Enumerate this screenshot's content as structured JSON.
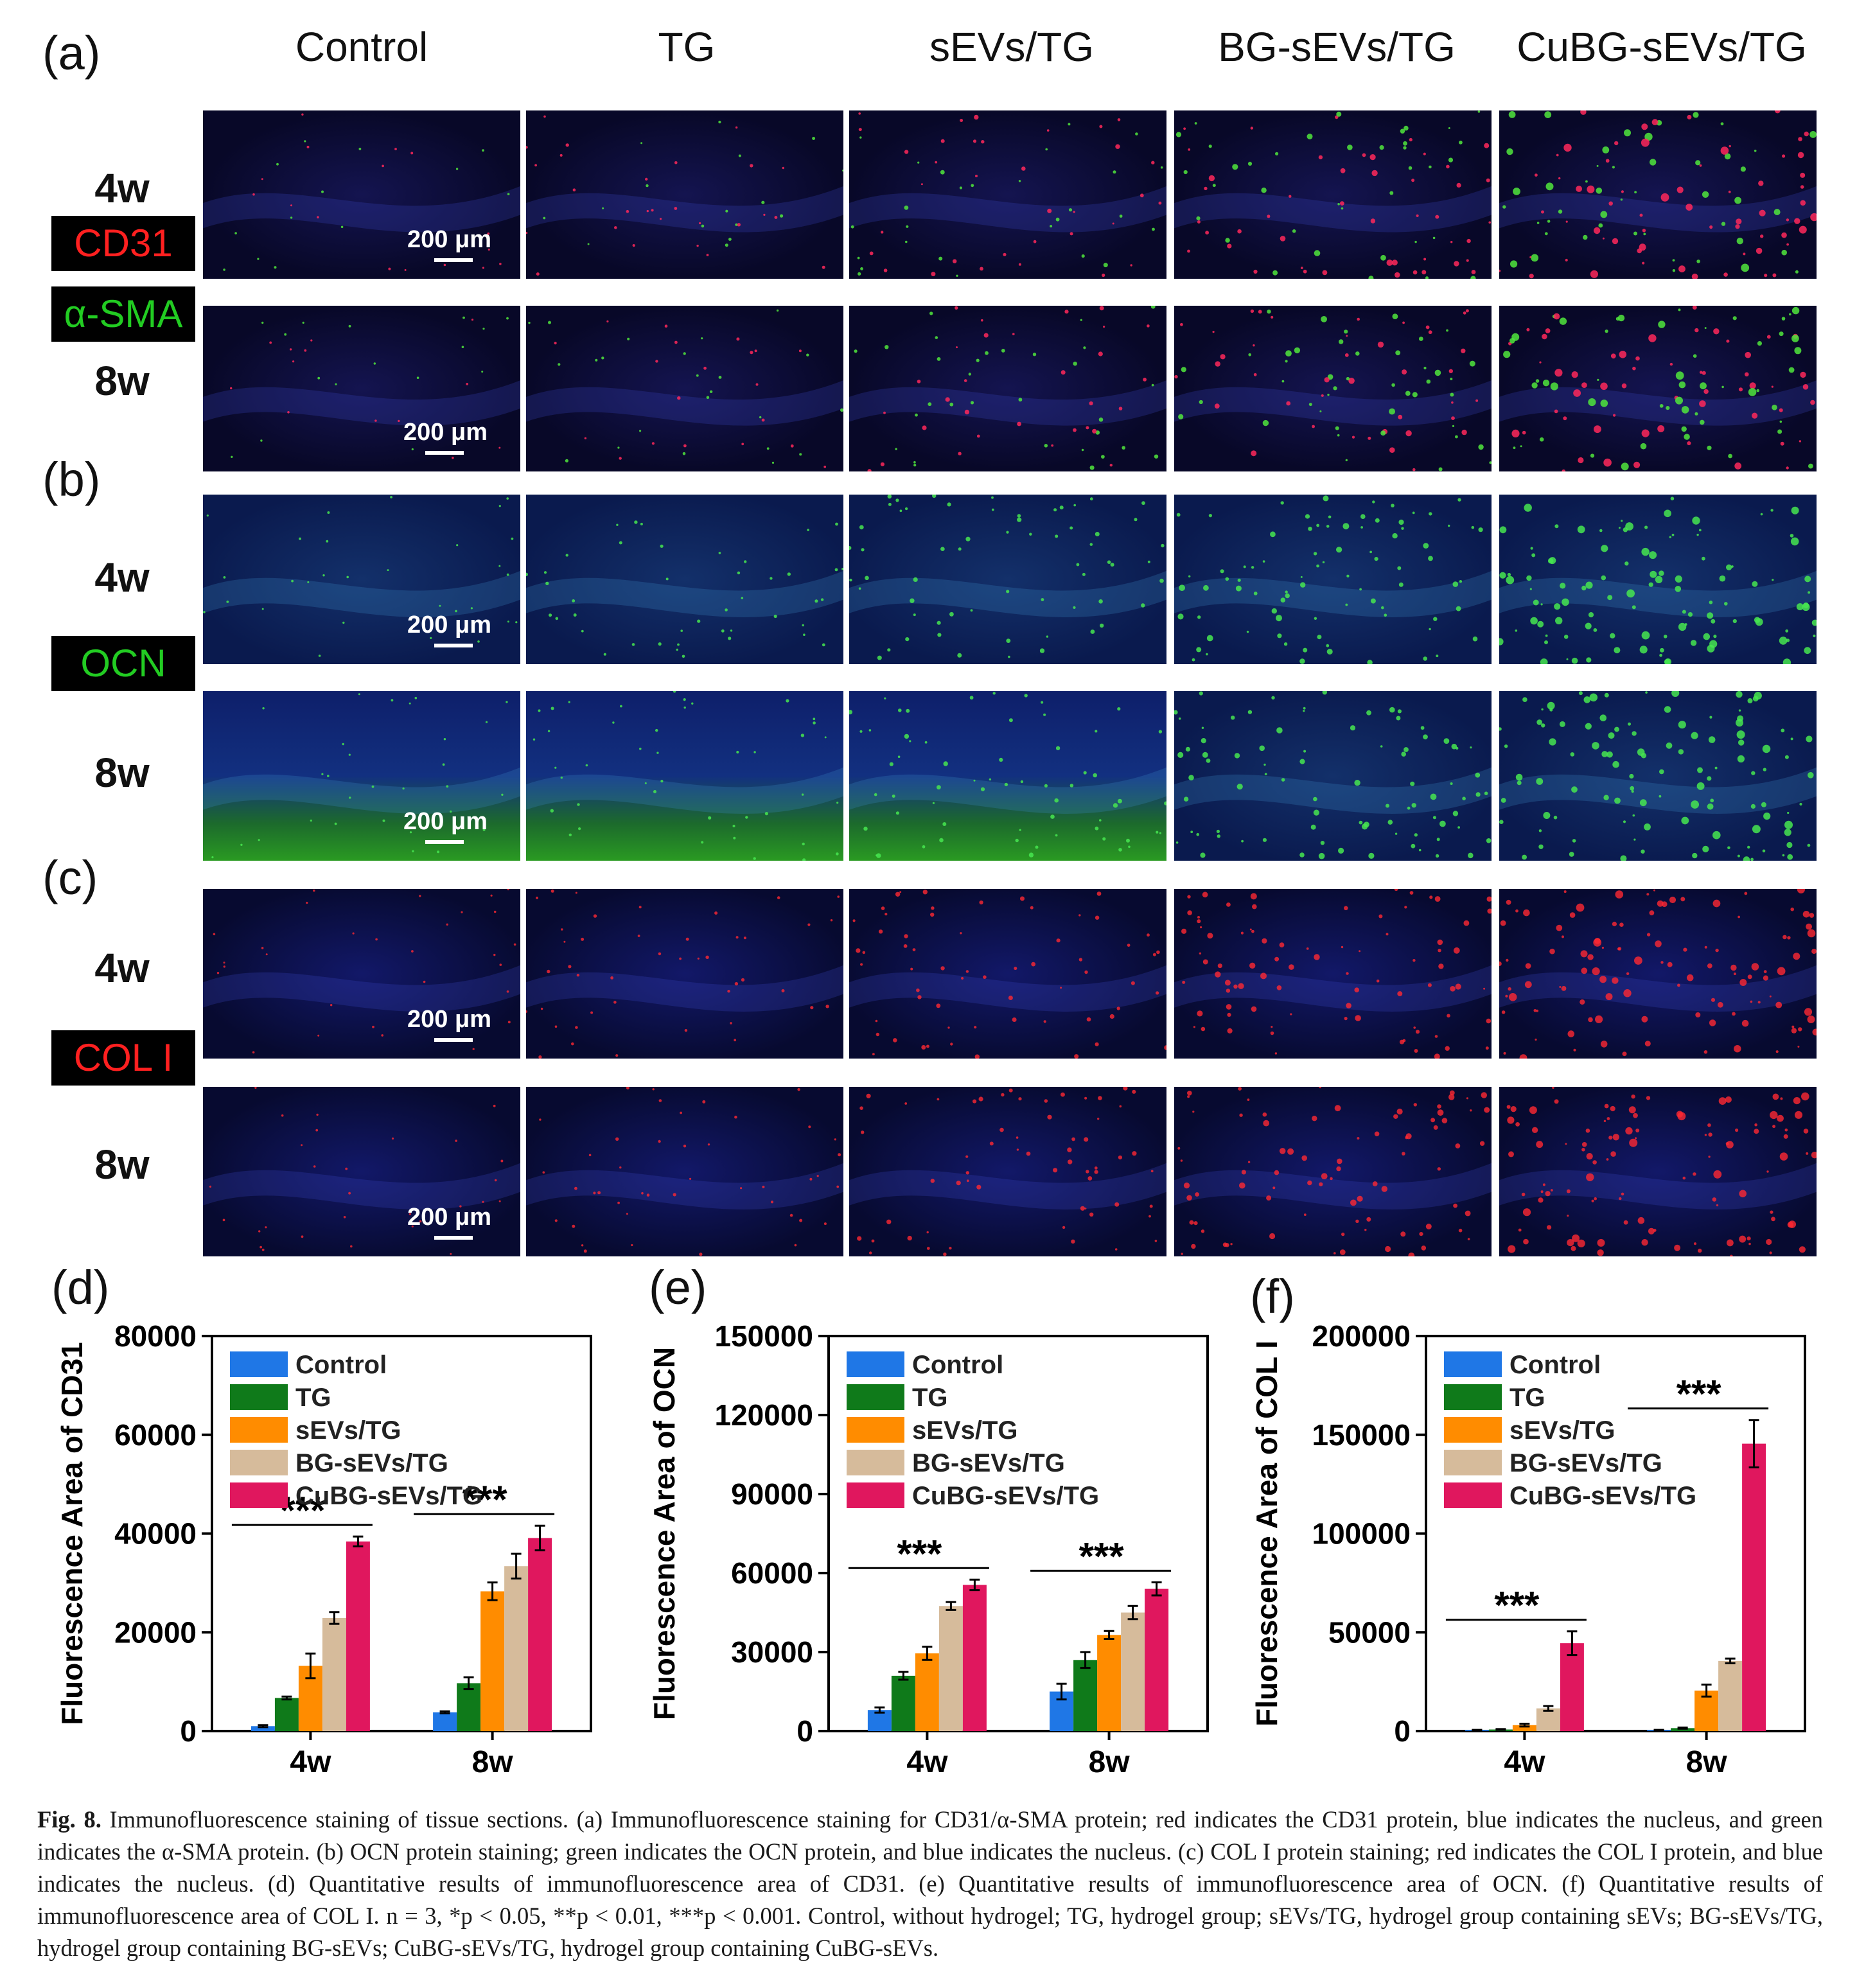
{
  "panels": {
    "a": "(a)",
    "b": "(b)",
    "c": "(c)",
    "d": "(d)",
    "e": "(e)",
    "f": "(f)"
  },
  "columns": [
    "Control",
    "TG",
    "sEVs/TG",
    "BG-sEVs/TG",
    "CuBG-sEVs/TG"
  ],
  "rows": [
    "4w",
    "8w",
    "4w",
    "8w",
    "4w",
    "8w"
  ],
  "stains": {
    "cd31": {
      "label": "CD31",
      "color": "#ff2020"
    },
    "asma": {
      "label": "α-SMA",
      "color": "#22cc22"
    },
    "ocn": {
      "label": "OCN",
      "color": "#22cc22"
    },
    "col1": {
      "label": "COL I",
      "color": "#ff2020"
    }
  },
  "scale_bar": "200 μm",
  "colors": {
    "Control": "#1f77e6",
    "TG": "#0f7a1a",
    "sEVs/TG": "#ff8c00",
    "BG-sEVs/TG": "#d6bb9b",
    "CuBG-sEVs/TG": "#e0175e"
  },
  "chart_data": [
    {
      "type": "bar",
      "ylabel": "Fluorescence Area of CD31",
      "categories": [
        "4w",
        "8w"
      ],
      "ylim": [
        0,
        80000
      ],
      "yticks": [
        0,
        20000,
        40000,
        60000,
        80000
      ],
      "legend": "top-left",
      "significance": [
        "***",
        "***"
      ],
      "series": [
        {
          "name": "Control",
          "values": [
            1000,
            3800
          ],
          "errors": [
            200,
            200
          ]
        },
        {
          "name": "TG",
          "values": [
            6700,
            9700
          ],
          "errors": [
            300,
            1200
          ]
        },
        {
          "name": "sEVs/TG",
          "values": [
            13200,
            28300
          ],
          "errors": [
            2500,
            1800
          ]
        },
        {
          "name": "BG-sEVs/TG",
          "values": [
            22900,
            33400
          ],
          "errors": [
            1200,
            2500
          ]
        },
        {
          "name": "CuBG-sEVs/TG",
          "values": [
            38400,
            39100
          ],
          "errors": [
            1000,
            2500
          ]
        }
      ]
    },
    {
      "type": "bar",
      "ylabel": "Fluorescence Area of OCN",
      "categories": [
        "4w",
        "8w"
      ],
      "ylim": [
        0,
        150000
      ],
      "yticks": [
        0,
        30000,
        60000,
        90000,
        120000,
        150000
      ],
      "legend": "top-left",
      "significance": [
        "***",
        "***"
      ],
      "series": [
        {
          "name": "Control",
          "values": [
            8000,
            15000
          ],
          "errors": [
            1000,
            3000
          ]
        },
        {
          "name": "TG",
          "values": [
            21000,
            27000
          ],
          "errors": [
            1500,
            3000
          ]
        },
        {
          "name": "sEVs/TG",
          "values": [
            29500,
            36500
          ],
          "errors": [
            2500,
            1500
          ]
        },
        {
          "name": "BG-sEVs/TG",
          "values": [
            47500,
            45000
          ],
          "errors": [
            1500,
            2500
          ]
        },
        {
          "name": "CuBG-sEVs/TG",
          "values": [
            55500,
            54000
          ],
          "errors": [
            2000,
            2500
          ]
        }
      ]
    },
    {
      "type": "bar",
      "ylabel": "Fluorescence Area of COL I",
      "categories": [
        "4w",
        "8w"
      ],
      "ylim": [
        0,
        200000
      ],
      "yticks": [
        0,
        50000,
        100000,
        150000,
        200000
      ],
      "legend": "top-left",
      "significance": [
        "***",
        "***"
      ],
      "series": [
        {
          "name": "Control",
          "values": [
            500,
            500
          ],
          "errors": [
            100,
            100
          ]
        },
        {
          "name": "TG",
          "values": [
            800,
            1500
          ],
          "errors": [
            200,
            300
          ]
        },
        {
          "name": "sEVs/TG",
          "values": [
            3000,
            20500
          ],
          "errors": [
            700,
            3000
          ]
        },
        {
          "name": "BG-sEVs/TG",
          "values": [
            11500,
            35500
          ],
          "errors": [
            1200,
            1200
          ]
        },
        {
          "name": "CuBG-sEVs/TG",
          "values": [
            44500,
            145500
          ],
          "errors": [
            6000,
            12000
          ]
        }
      ]
    }
  ],
  "caption": {
    "label": "Fig. 8.",
    "text": "Immunofluorescence staining of tissue sections. (a) Immunofluorescence staining for CD31/α-SMA protein; red indicates the CD31 protein, blue indicates the nucleus, and green indicates the α-SMA protein. (b) OCN protein staining; green indicates the OCN protein, and blue indicates the nucleus. (c) COL I protein staining; red indicates the COL I protein, and blue indicates the nucleus. (d) Quantitative results of immunofluorescence area of CD31. (e) Quantitative results of immunofluorescence area of OCN. (f) Quantitative results of immunofluorescence area of COL I. n = 3, *p < 0.05, **p < 0.01, ***p < 0.001. Control, without hydrogel; TG, hydrogel group; sEVs/TG, hydrogel group containing sEVs; BG-sEVs/TG, hydrogel group containing BG-sEVs; CuBG-sEVs/TG, hydrogel group containing CuBG-sEVs."
  }
}
